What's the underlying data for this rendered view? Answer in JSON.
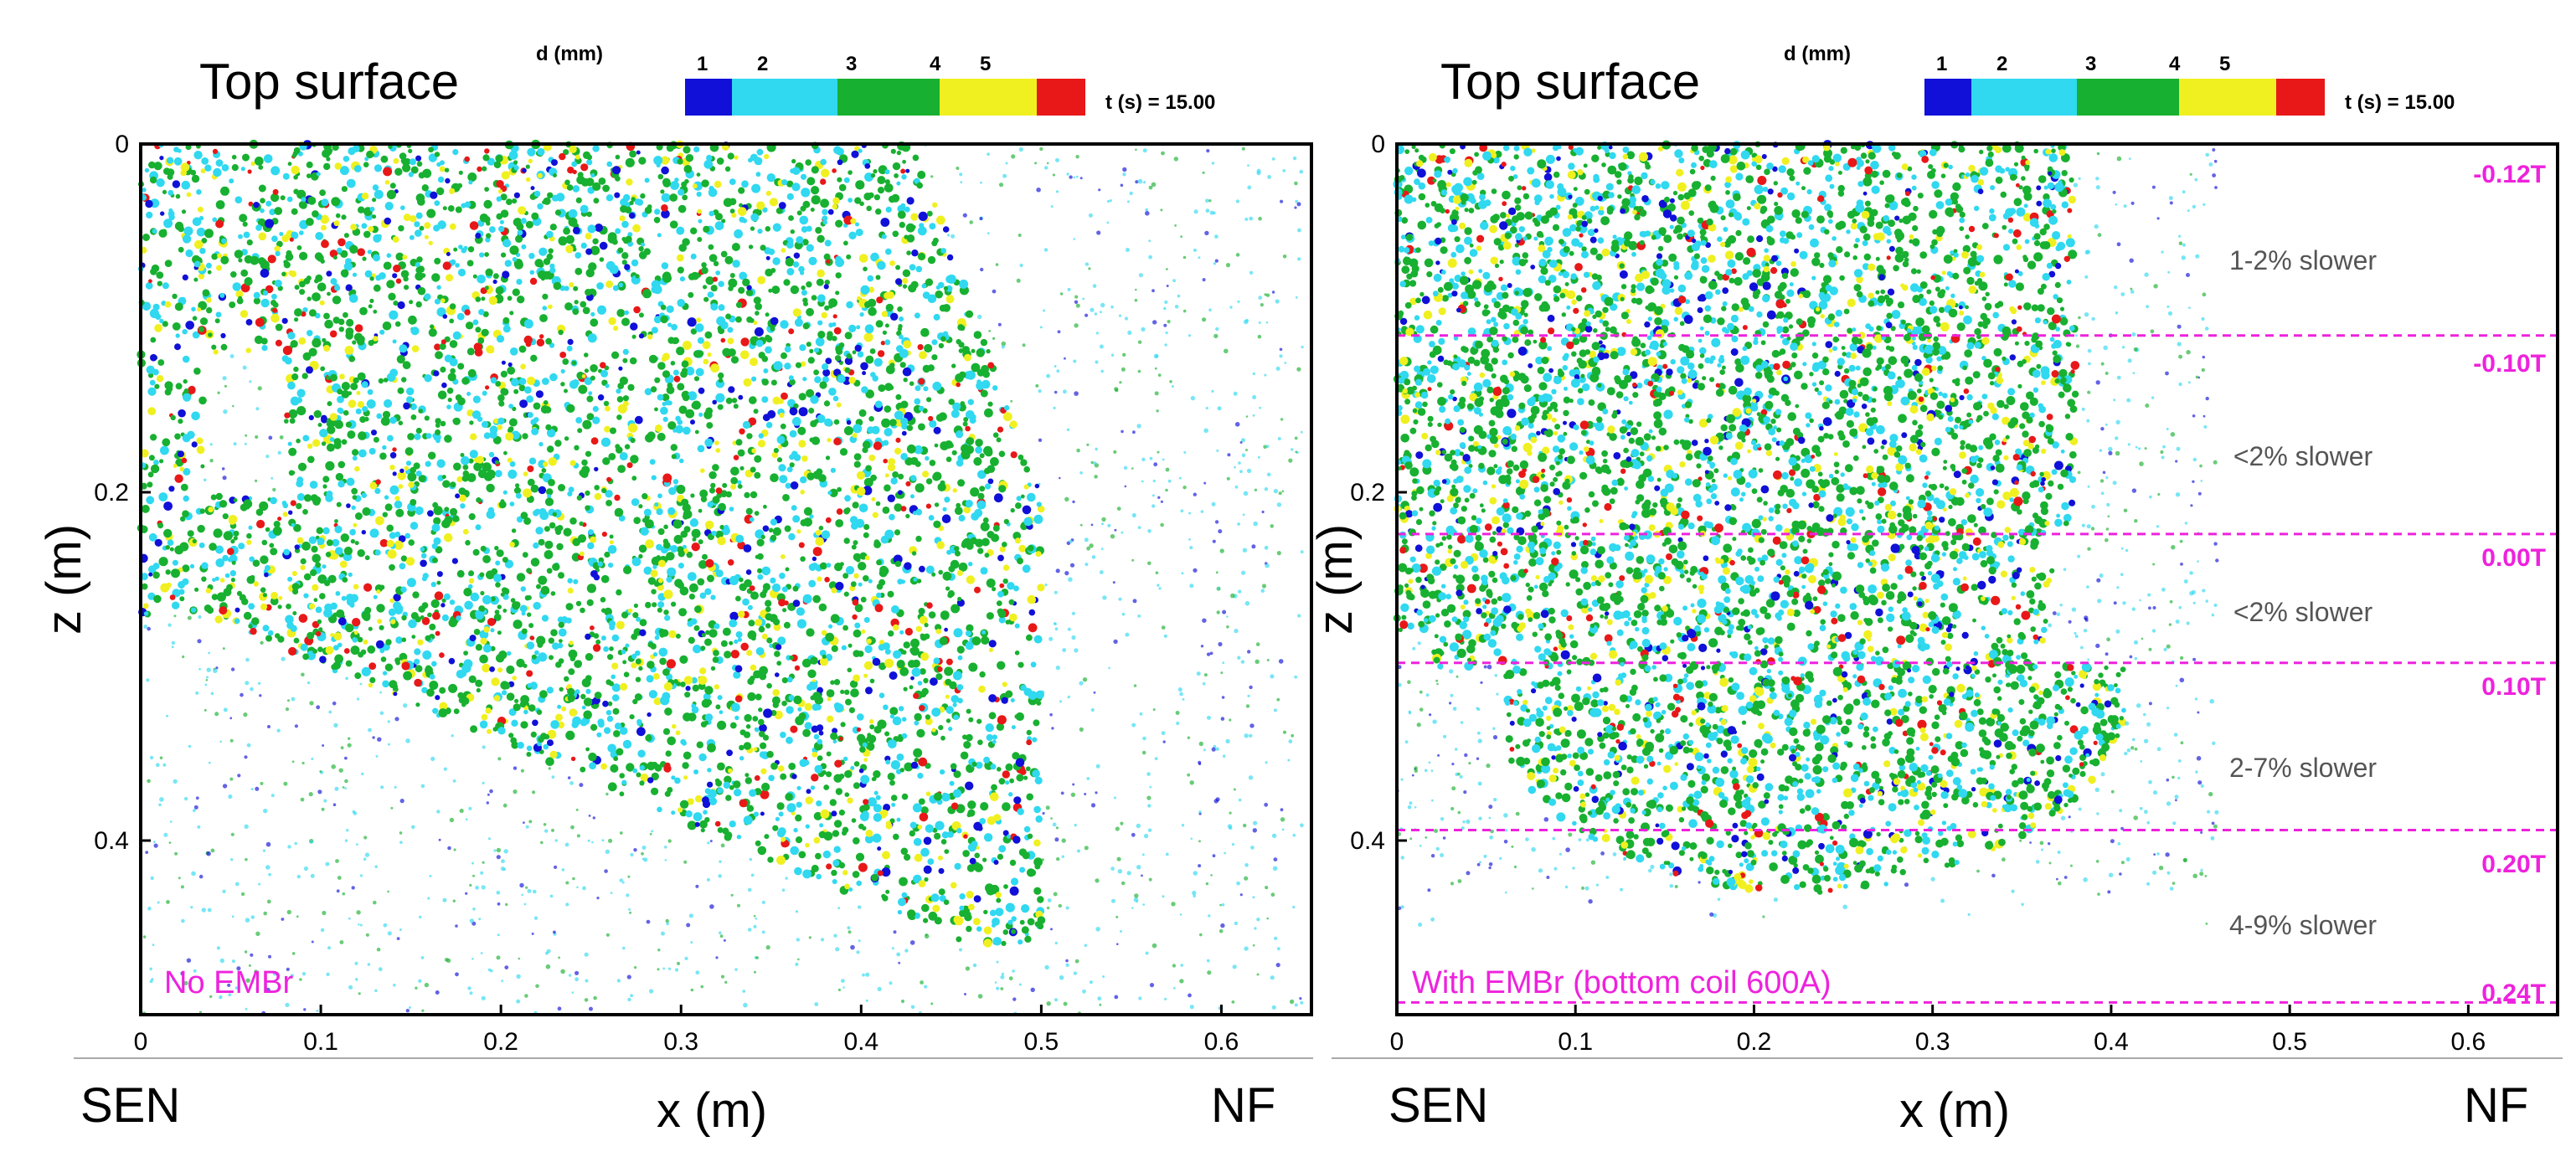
{
  "colors": {
    "bins": [
      "#1010d8",
      "#30d8f0",
      "#18b030",
      "#f0f020",
      "#e81818"
    ],
    "magenta": "#ee22dd",
    "zone_text": "#555555"
  },
  "legend": {
    "title": "d (mm)",
    "ticks": [
      "1",
      "2",
      "3",
      "4",
      "5"
    ],
    "time_label": "t (s) = 15.00"
  },
  "chart_data": [
    {
      "type": "scatter",
      "panel": "left",
      "title": "Top surface",
      "xlabel": "x (m)",
      "ylabel": "z (m)",
      "xlim": [
        0,
        0.65
      ],
      "ylim": [
        0.5,
        0
      ],
      "x_ticks": [
        "0",
        "0.1",
        "0.2",
        "0.3",
        "0.4",
        "0.5",
        "0.6"
      ],
      "y_ticks": [
        "0",
        "0.2",
        "0.4"
      ],
      "x_left_label": "SEN",
      "x_right_label": "NF",
      "annotation": "No EMBr",
      "bubble_cloud": {
        "description": "bubble particles colored by diameter d (mm)",
        "dense_region": {
          "x": [
            0,
            0.5
          ],
          "z": [
            0,
            0.46
          ]
        },
        "sparse_region": {
          "x": [
            0.5,
            0.65
          ],
          "z": [
            0,
            0.5
          ]
        }
      }
    },
    {
      "type": "scatter",
      "panel": "right",
      "title": "Top surface",
      "xlabel": "x (m)",
      "ylabel": "z (m)",
      "xlim": [
        0,
        0.65
      ],
      "ylim": [
        0.5,
        0
      ],
      "x_ticks": [
        "0",
        "0.1",
        "0.2",
        "0.3",
        "0.4",
        "0.5",
        "0.6"
      ],
      "y_ticks": [
        "0",
        "0.2",
        "0.4"
      ],
      "x_left_label": "SEN",
      "x_right_label": "NF",
      "annotation": "With EMBr (bottom coil 600A)",
      "field_labels": [
        "-0.12T",
        "-0.10T",
        "0.00T",
        "0.10T",
        "0.20T",
        "0.24T"
      ],
      "zone_dividers_z": [
        0.11,
        0.224,
        0.298,
        0.394,
        0.493
      ],
      "zone_labels": [
        "1-2% slower",
        "<2% slower",
        "<2% slower",
        "2-7% slower",
        "4-9% slower"
      ],
      "bubble_cloud": {
        "description": "bubble particles colored by diameter d (mm)",
        "dense_region": {
          "x": [
            0,
            0.4
          ],
          "z": [
            0,
            0.43
          ]
        },
        "sparse_region": {
          "x": [
            0.4,
            0.5
          ],
          "z": [
            0,
            0.35
          ]
        }
      }
    }
  ]
}
